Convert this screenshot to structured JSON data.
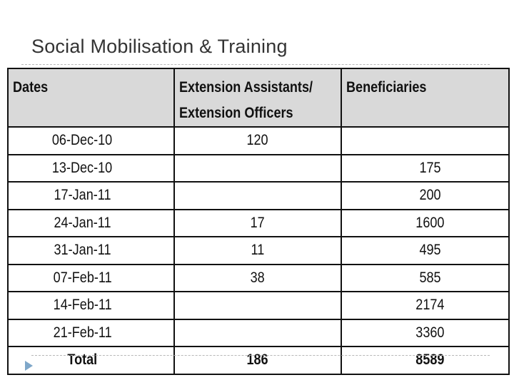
{
  "slide": {
    "title": "Social Mobilisation & Training"
  },
  "table": {
    "headers": {
      "dates": "Dates",
      "ext_line1": "Extension Assistants/",
      "ext_line2": "Extension Officers",
      "beneficiaries": "Beneficiaries"
    },
    "rows": [
      {
        "date": "06-Dec-10",
        "ext": "120",
        "ben": ""
      },
      {
        "date": "13-Dec-10",
        "ext": "",
        "ben": "175"
      },
      {
        "date": "17-Jan-11",
        "ext": "",
        "ben": "200"
      },
      {
        "date": "24-Jan-11",
        "ext": "17",
        "ben": "1600"
      },
      {
        "date": "31-Jan-11",
        "ext": "11",
        "ben": "495"
      },
      {
        "date": "07-Feb-11",
        "ext": "38",
        "ben": "585"
      },
      {
        "date": "14-Feb-11",
        "ext": "",
        "ben": "2174"
      },
      {
        "date": "21-Feb-11",
        "ext": "",
        "ben": "3360"
      }
    ],
    "total": {
      "label": "Total",
      "ext": "186",
      "ben": "8589"
    }
  },
  "colors": {
    "header_bg": "#d9d9d9",
    "bullet": "#7fa7c9"
  },
  "icons": {
    "bullet": "triangle-bullet-icon"
  }
}
